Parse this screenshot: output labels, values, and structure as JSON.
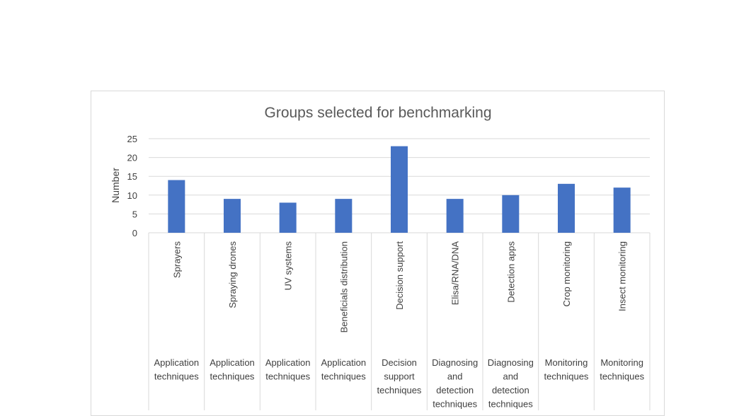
{
  "chart_data": {
    "type": "bar",
    "title": "Groups selected for benchmarking",
    "ylabel": "Number",
    "xlabel": "",
    "ylim": [
      0,
      25
    ],
    "yticks": [
      0,
      5,
      10,
      15,
      20,
      25
    ],
    "grid": true,
    "legend": "none",
    "bar_color": "#4472c4",
    "categories": [
      "Sprayers",
      "Spraying drones",
      "UV systems",
      "Beneficials distribution",
      "Decision support",
      "Elisa/RNA/DNA",
      "Detection apps",
      "Crop monitoring",
      "Insect monitoring"
    ],
    "groups": [
      [
        "Application",
        "techniques"
      ],
      [
        "Application",
        "techniques"
      ],
      [
        "Application",
        "techniques"
      ],
      [
        "Application",
        "techniques"
      ],
      [
        "Decision",
        "support",
        "techniques"
      ],
      [
        "Diagnosing",
        "and",
        "detection",
        "techniques"
      ],
      [
        "Diagnosing",
        "and",
        "detection",
        "techniques"
      ],
      [
        "Monitoring",
        "techniques"
      ],
      [
        "Monitoring",
        "techniques"
      ]
    ],
    "values": [
      14,
      9,
      8,
      9,
      23,
      9,
      10,
      13,
      12
    ]
  }
}
